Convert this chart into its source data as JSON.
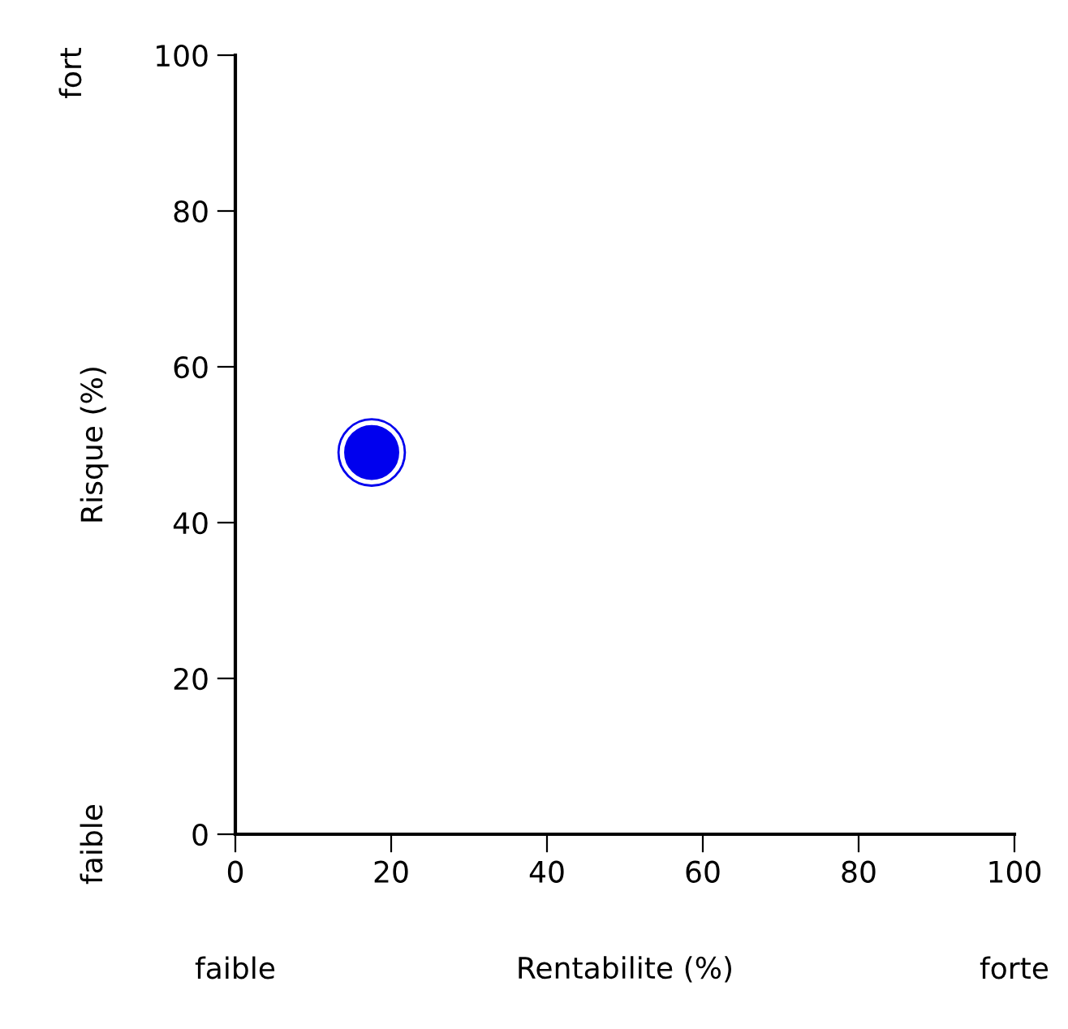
{
  "chart_data": {
    "type": "scatter",
    "xlabel": "Rentabilite (%)",
    "ylabel": "Risque (%)",
    "x": [
      17.5
    ],
    "values": [
      49
    ],
    "color": "#0000ee",
    "marker": "circle",
    "xlim": [
      0,
      100
    ],
    "ylim": [
      0,
      100
    ],
    "xticks": [
      0,
      20,
      40,
      60,
      80,
      100
    ],
    "yticks": [
      0,
      20,
      40,
      60,
      80,
      100
    ],
    "annotations": [
      "fort",
      "faible",
      "faible",
      "forte"
    ]
  }
}
